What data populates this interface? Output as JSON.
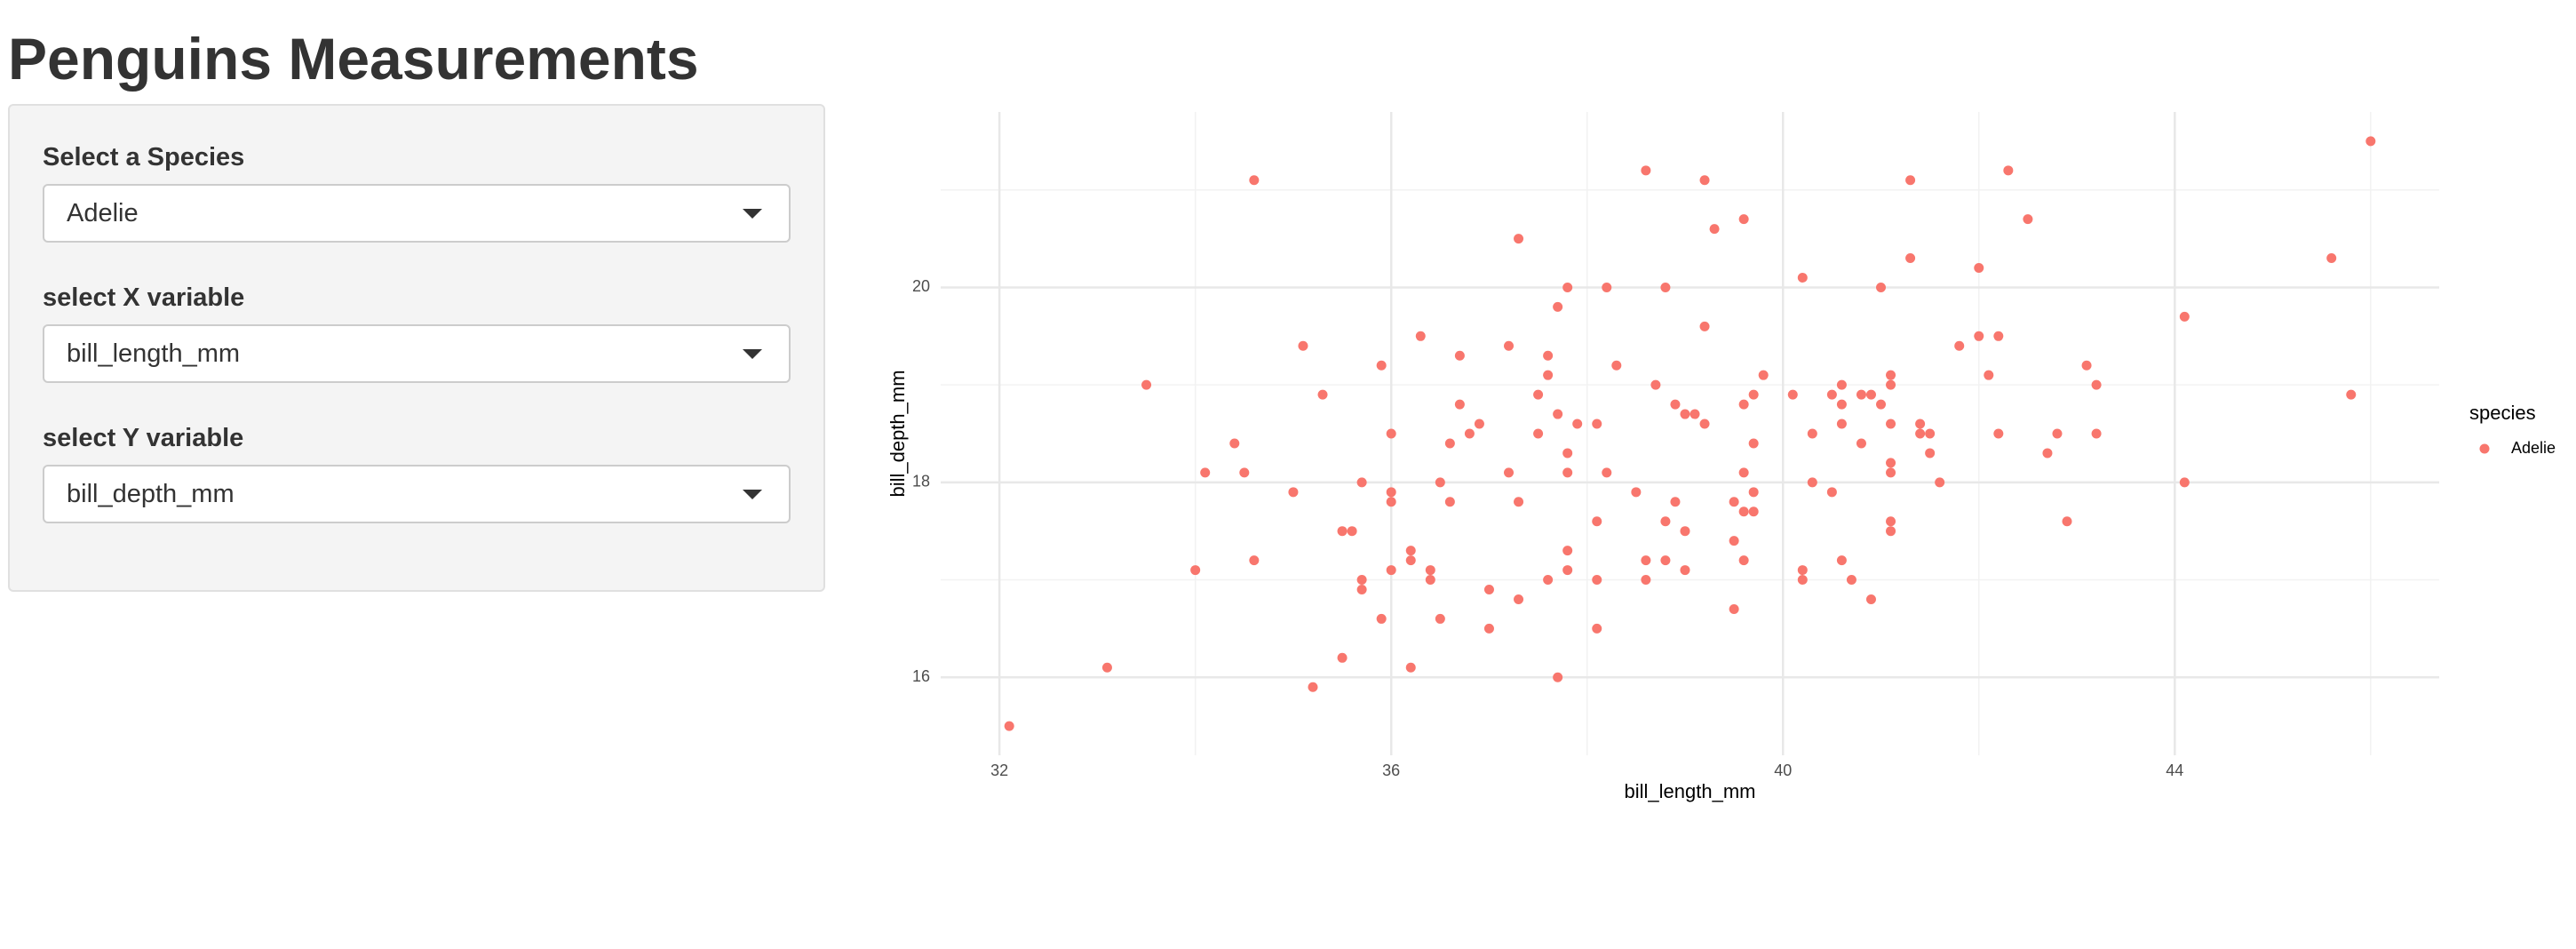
{
  "header": {
    "title": "Penguins Measurements"
  },
  "sidebar": {
    "controls": [
      {
        "label": "Select a Species",
        "value": "Adelie"
      },
      {
        "label": "select X variable",
        "value": "bill_length_mm"
      },
      {
        "label": "select Y variable",
        "value": "bill_depth_mm"
      }
    ]
  },
  "chart_data": {
    "type": "scatter",
    "x_label": "bill_length_mm",
    "y_label": "bill_depth_mm",
    "legend_title": "species",
    "xlim": [
      31.4,
      46.7
    ],
    "ylim": [
      15.2,
      21.8
    ],
    "xticks": [
      32,
      36,
      40,
      44
    ],
    "yticks": [
      16,
      18,
      20
    ],
    "minor_xticks": [
      34,
      38,
      42,
      46
    ],
    "minor_yticks": [
      17,
      19,
      21
    ],
    "grid": true,
    "series": [
      {
        "name": "Adelie",
        "color": "#F8766D",
        "x": [
          32.1,
          33.1,
          33.5,
          34.0,
          34.1,
          34.4,
          34.5,
          34.6,
          34.6,
          35.0,
          35.1,
          35.2,
          35.3,
          35.5,
          35.5,
          35.6,
          35.7,
          35.7,
          35.7,
          35.9,
          35.9,
          36.0,
          36.0,
          36.0,
          36.0,
          36.2,
          36.2,
          36.2,
          36.3,
          36.4,
          36.4,
          36.5,
          36.5,
          36.6,
          36.6,
          36.7,
          36.7,
          36.8,
          36.9,
          37.0,
          37.0,
          37.2,
          37.2,
          37.3,
          37.3,
          37.3,
          37.5,
          37.5,
          37.6,
          37.6,
          37.6,
          37.7,
          37.7,
          37.7,
          37.8,
          37.8,
          37.8,
          37.8,
          37.8,
          37.9,
          38.1,
          38.1,
          38.1,
          38.1,
          38.2,
          38.2,
          38.3,
          38.5,
          38.6,
          38.6,
          38.6,
          38.7,
          38.8,
          38.8,
          38.8,
          38.9,
          38.9,
          39.0,
          39.0,
          39.0,
          39.1,
          39.2,
          39.2,
          39.2,
          39.3,
          39.5,
          39.5,
          39.5,
          39.6,
          39.6,
          39.6,
          39.6,
          39.6,
          39.7,
          39.7,
          39.7,
          39.7,
          39.8,
          40.1,
          40.2,
          40.2,
          40.2,
          40.3,
          40.3,
          40.5,
          40.5,
          40.6,
          40.6,
          40.6,
          40.6,
          40.7,
          40.8,
          40.8,
          40.9,
          40.9,
          41.0,
          41.0,
          41.1,
          41.1,
          41.1,
          41.1,
          41.1,
          41.1,
          41.1,
          41.3,
          41.3,
          41.4,
          41.4,
          41.5,
          41.5,
          41.6,
          41.8,
          42.0,
          42.0,
          42.1,
          42.2,
          42.2,
          42.3,
          42.5,
          42.7,
          42.8,
          42.9,
          43.1,
          43.2,
          43.2,
          44.1,
          44.1,
          45.6,
          45.8,
          46.0
        ],
        "values": [
          15.5,
          16.1,
          19.0,
          17.1,
          18.1,
          18.4,
          18.1,
          21.1,
          17.2,
          17.9,
          19.4,
          15.9,
          18.9,
          16.2,
          17.5,
          17.5,
          18.0,
          17.0,
          16.9,
          16.6,
          19.2,
          18.5,
          17.9,
          17.8,
          17.1,
          17.3,
          17.2,
          16.1,
          19.5,
          17.1,
          17.0,
          18.0,
          16.6,
          18.4,
          17.8,
          18.8,
          19.3,
          18.5,
          18.6,
          16.9,
          16.5,
          19.4,
          18.1,
          20.5,
          17.8,
          16.8,
          18.9,
          18.5,
          19.3,
          19.1,
          17.0,
          19.8,
          18.7,
          16.0,
          20.0,
          18.3,
          18.1,
          17.3,
          17.1,
          18.6,
          18.6,
          17.6,
          17.0,
          16.5,
          20.0,
          18.1,
          19.2,
          17.9,
          17.2,
          17.0,
          21.2,
          19.0,
          20.0,
          17.6,
          17.2,
          18.8,
          17.8,
          18.7,
          17.5,
          17.1,
          18.7,
          18.6,
          19.6,
          21.1,
          20.6,
          17.4,
          17.8,
          16.7,
          20.7,
          18.8,
          18.1,
          17.7,
          17.2,
          18.9,
          18.4,
          17.9,
          17.7,
          19.1,
          18.9,
          20.1,
          17.1,
          17.0,
          18.5,
          18.0,
          18.9,
          17.9,
          19.0,
          18.8,
          18.6,
          17.2,
          17.0,
          18.9,
          18.4,
          18.9,
          16.8,
          20.0,
          18.8,
          19.1,
          19.0,
          18.6,
          18.2,
          18.1,
          17.6,
          17.5,
          20.3,
          21.1,
          18.6,
          18.5,
          18.5,
          18.3,
          18.0,
          19.4,
          20.2,
          19.5,
          19.1,
          19.5,
          18.5,
          21.2,
          20.7,
          18.3,
          18.5,
          17.6,
          19.2,
          19.0,
          18.5,
          19.7,
          18.0,
          20.3,
          18.9,
          21.5
        ]
      }
    ]
  }
}
